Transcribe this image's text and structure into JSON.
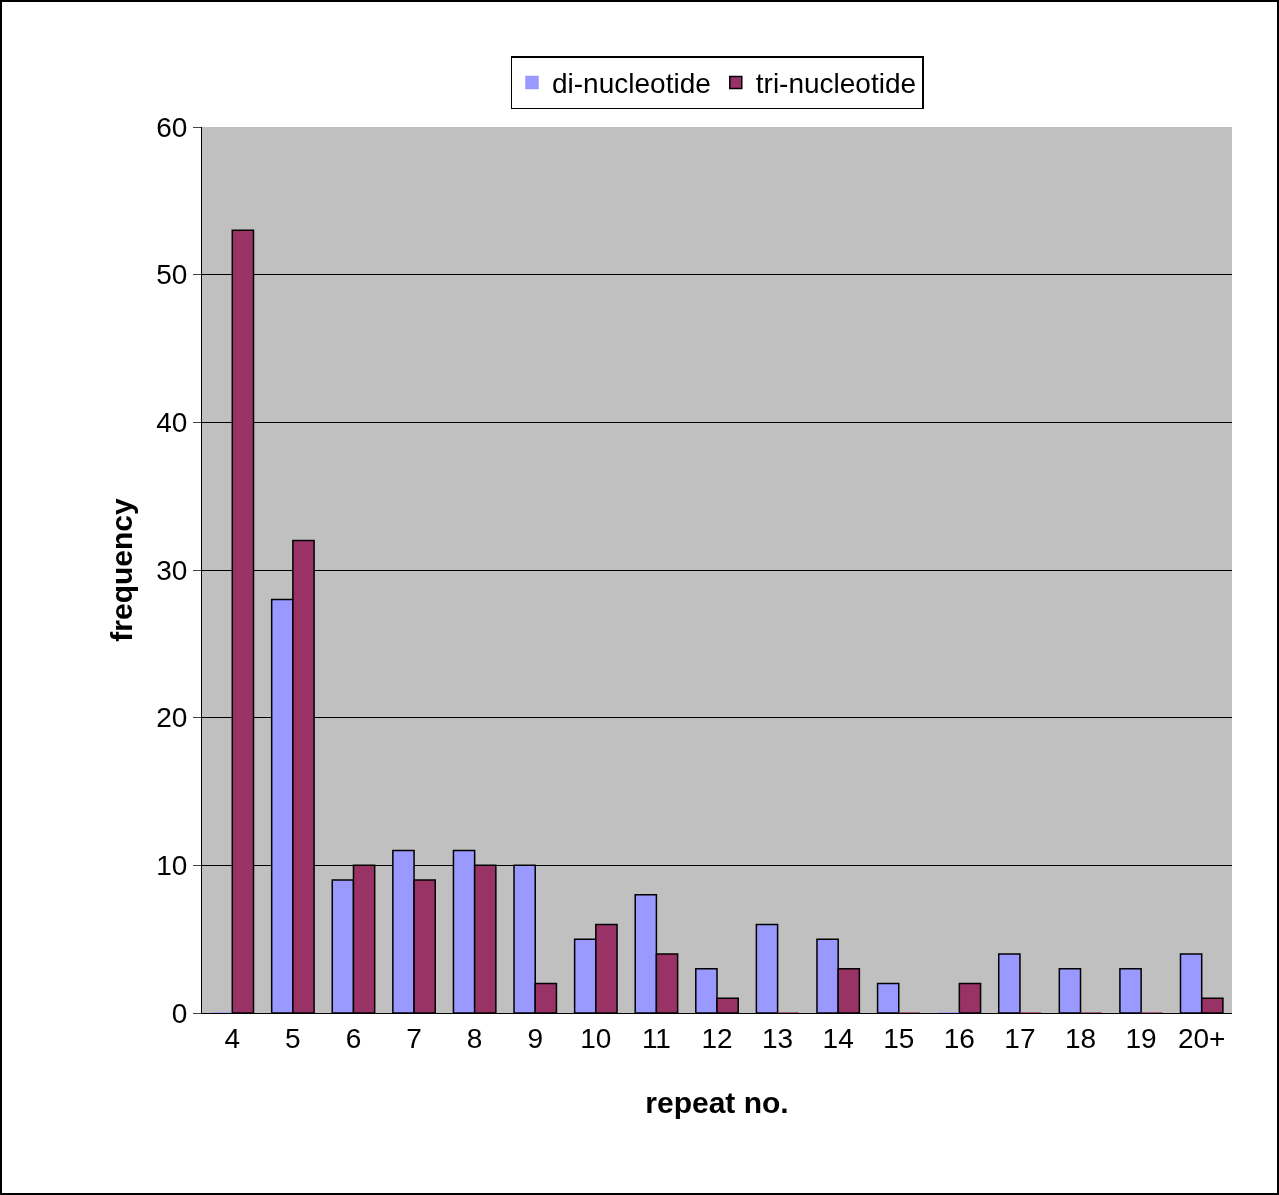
{
  "chart_data": {
    "type": "bar",
    "xlabel": "repeat no.",
    "ylabel": "frequency",
    "categories": [
      "4",
      "5",
      "6",
      "7",
      "8",
      "9",
      "10",
      "11",
      "12",
      "13",
      "14",
      "15",
      "16",
      "17",
      "18",
      "19",
      "20+"
    ],
    "series": [
      {
        "name": "di-nucleotide",
        "color": "#9999ff",
        "values": [
          0,
          28,
          9,
          11,
          11,
          10,
          5,
          8,
          3,
          6,
          5,
          2,
          0,
          4,
          3,
          3,
          4
        ]
      },
      {
        "name": "tri-nucleotide",
        "color": "#993366",
        "values": [
          53,
          32,
          10,
          9,
          10,
          2,
          6,
          4,
          1,
          0,
          3,
          0,
          2,
          0,
          0,
          0,
          1
        ]
      }
    ],
    "ylim": [
      0,
      60
    ],
    "yticks": [
      0,
      10,
      20,
      30,
      40,
      50,
      60
    ],
    "grid": "y",
    "legend": "top"
  }
}
